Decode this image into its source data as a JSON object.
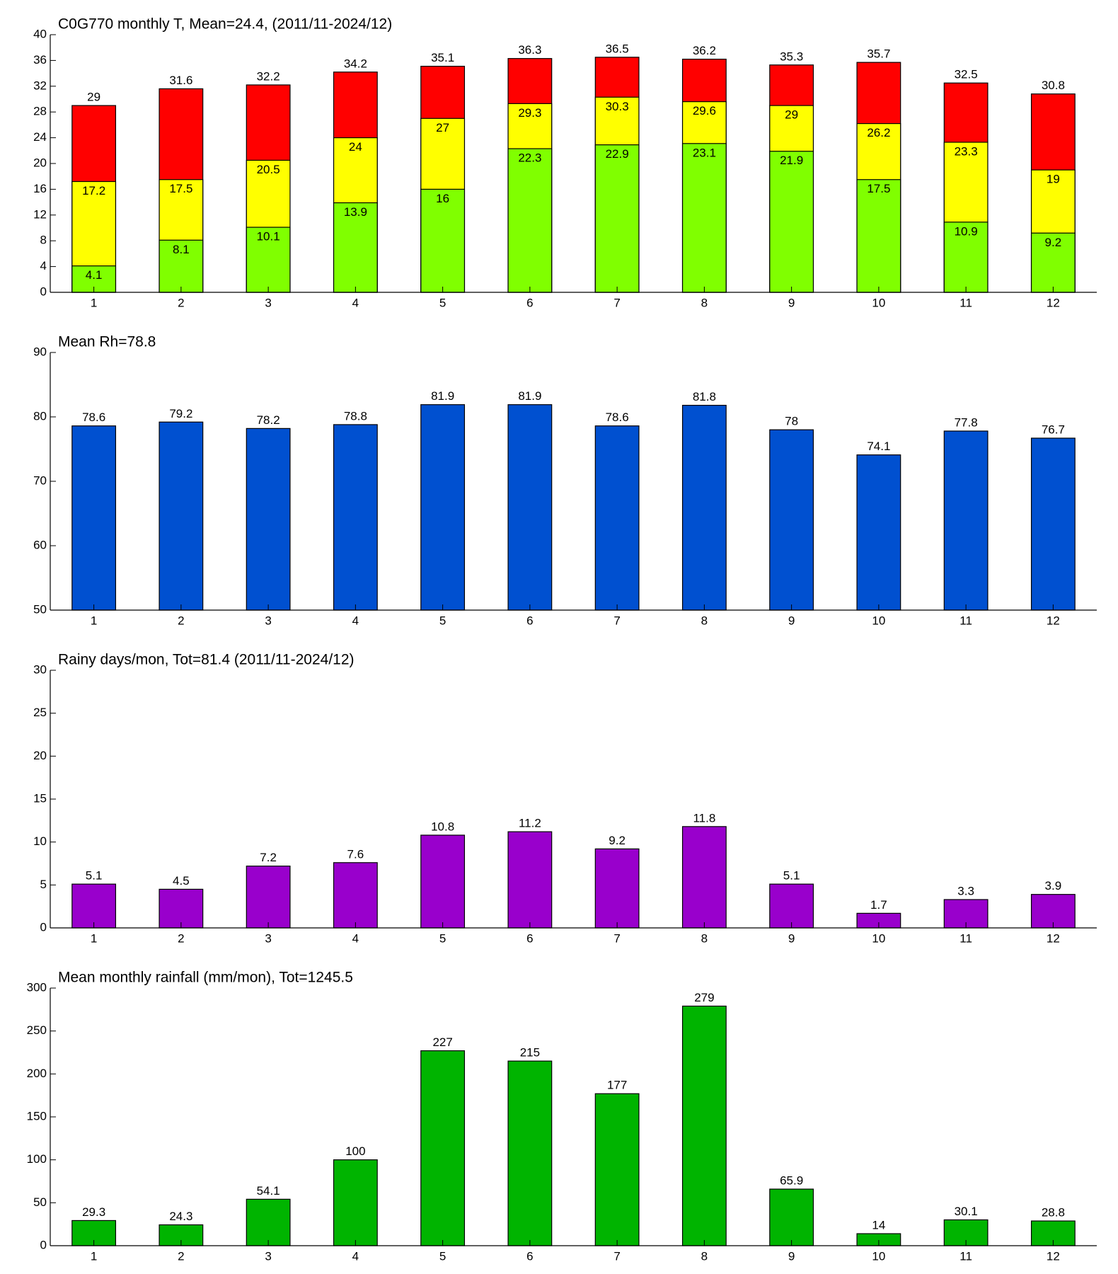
{
  "chart_data": [
    {
      "type": "bar",
      "title": "C0G770 monthly T, Mean=24.4, (2011/11-2024/12)",
      "categories": [
        "1",
        "2",
        "3",
        "4",
        "5",
        "6",
        "7",
        "8",
        "9",
        "10",
        "11",
        "12"
      ],
      "series": [
        {
          "color": "#80ff00",
          "values": [
            4.1,
            8.1,
            10.1,
            13.9,
            16,
            22.3,
            22.9,
            23.1,
            21.9,
            17.5,
            10.9,
            9.2
          ]
        },
        {
          "color": "#ffff00",
          "values": [
            17.2,
            17.5,
            20.5,
            24,
            27,
            29.3,
            30.3,
            29.6,
            29,
            26.2,
            23.3,
            19
          ]
        },
        {
          "color": "#ff0000",
          "values": [
            29,
            31.6,
            32.2,
            34.2,
            35.1,
            36.3,
            36.5,
            36.2,
            35.3,
            35.7,
            32.5,
            30.8
          ]
        }
      ],
      "ylim": [
        0,
        40
      ],
      "yticks": [
        0,
        4,
        8,
        12,
        16,
        20,
        24,
        28,
        32,
        36,
        40
      ]
    },
    {
      "type": "bar",
      "title": "Mean Rh=78.8",
      "categories": [
        "1",
        "2",
        "3",
        "4",
        "5",
        "6",
        "7",
        "8",
        "9",
        "10",
        "11",
        "12"
      ],
      "series": [
        {
          "color": "#0050d0",
          "values": [
            78.6,
            79.2,
            78.2,
            78.8,
            81.9,
            81.9,
            78.6,
            81.8,
            78,
            74.1,
            77.8,
            76.7
          ]
        }
      ],
      "ylim": [
        50,
        90
      ],
      "yticks": [
        50,
        60,
        70,
        80,
        90
      ]
    },
    {
      "type": "bar",
      "title": "Rainy days/mon, Tot=81.4 (2011/11-2024/12)",
      "categories": [
        "1",
        "2",
        "3",
        "4",
        "5",
        "6",
        "7",
        "8",
        "9",
        "10",
        "11",
        "12"
      ],
      "series": [
        {
          "color": "#9900cc",
          "values": [
            5.1,
            4.5,
            7.2,
            7.6,
            10.8,
            11.2,
            9.2,
            11.8,
            5.1,
            1.7,
            3.3,
            3.9
          ]
        }
      ],
      "ylim": [
        0,
        30
      ],
      "yticks": [
        0,
        5,
        10,
        15,
        20,
        25,
        30
      ]
    },
    {
      "type": "bar",
      "title": "Mean monthly rainfall (mm/mon), Tot=1245.5",
      "categories": [
        "1",
        "2",
        "3",
        "4",
        "5",
        "6",
        "7",
        "8",
        "9",
        "10",
        "11",
        "12"
      ],
      "series": [
        {
          "color": "#00b400",
          "values": [
            29.3,
            24.3,
            54.1,
            100,
            227,
            215,
            177,
            279,
            65.9,
            14,
            30.1,
            28.8
          ]
        }
      ],
      "ylim": [
        0,
        300
      ],
      "yticks": [
        0,
        50,
        100,
        150,
        200,
        250,
        300
      ]
    }
  ]
}
